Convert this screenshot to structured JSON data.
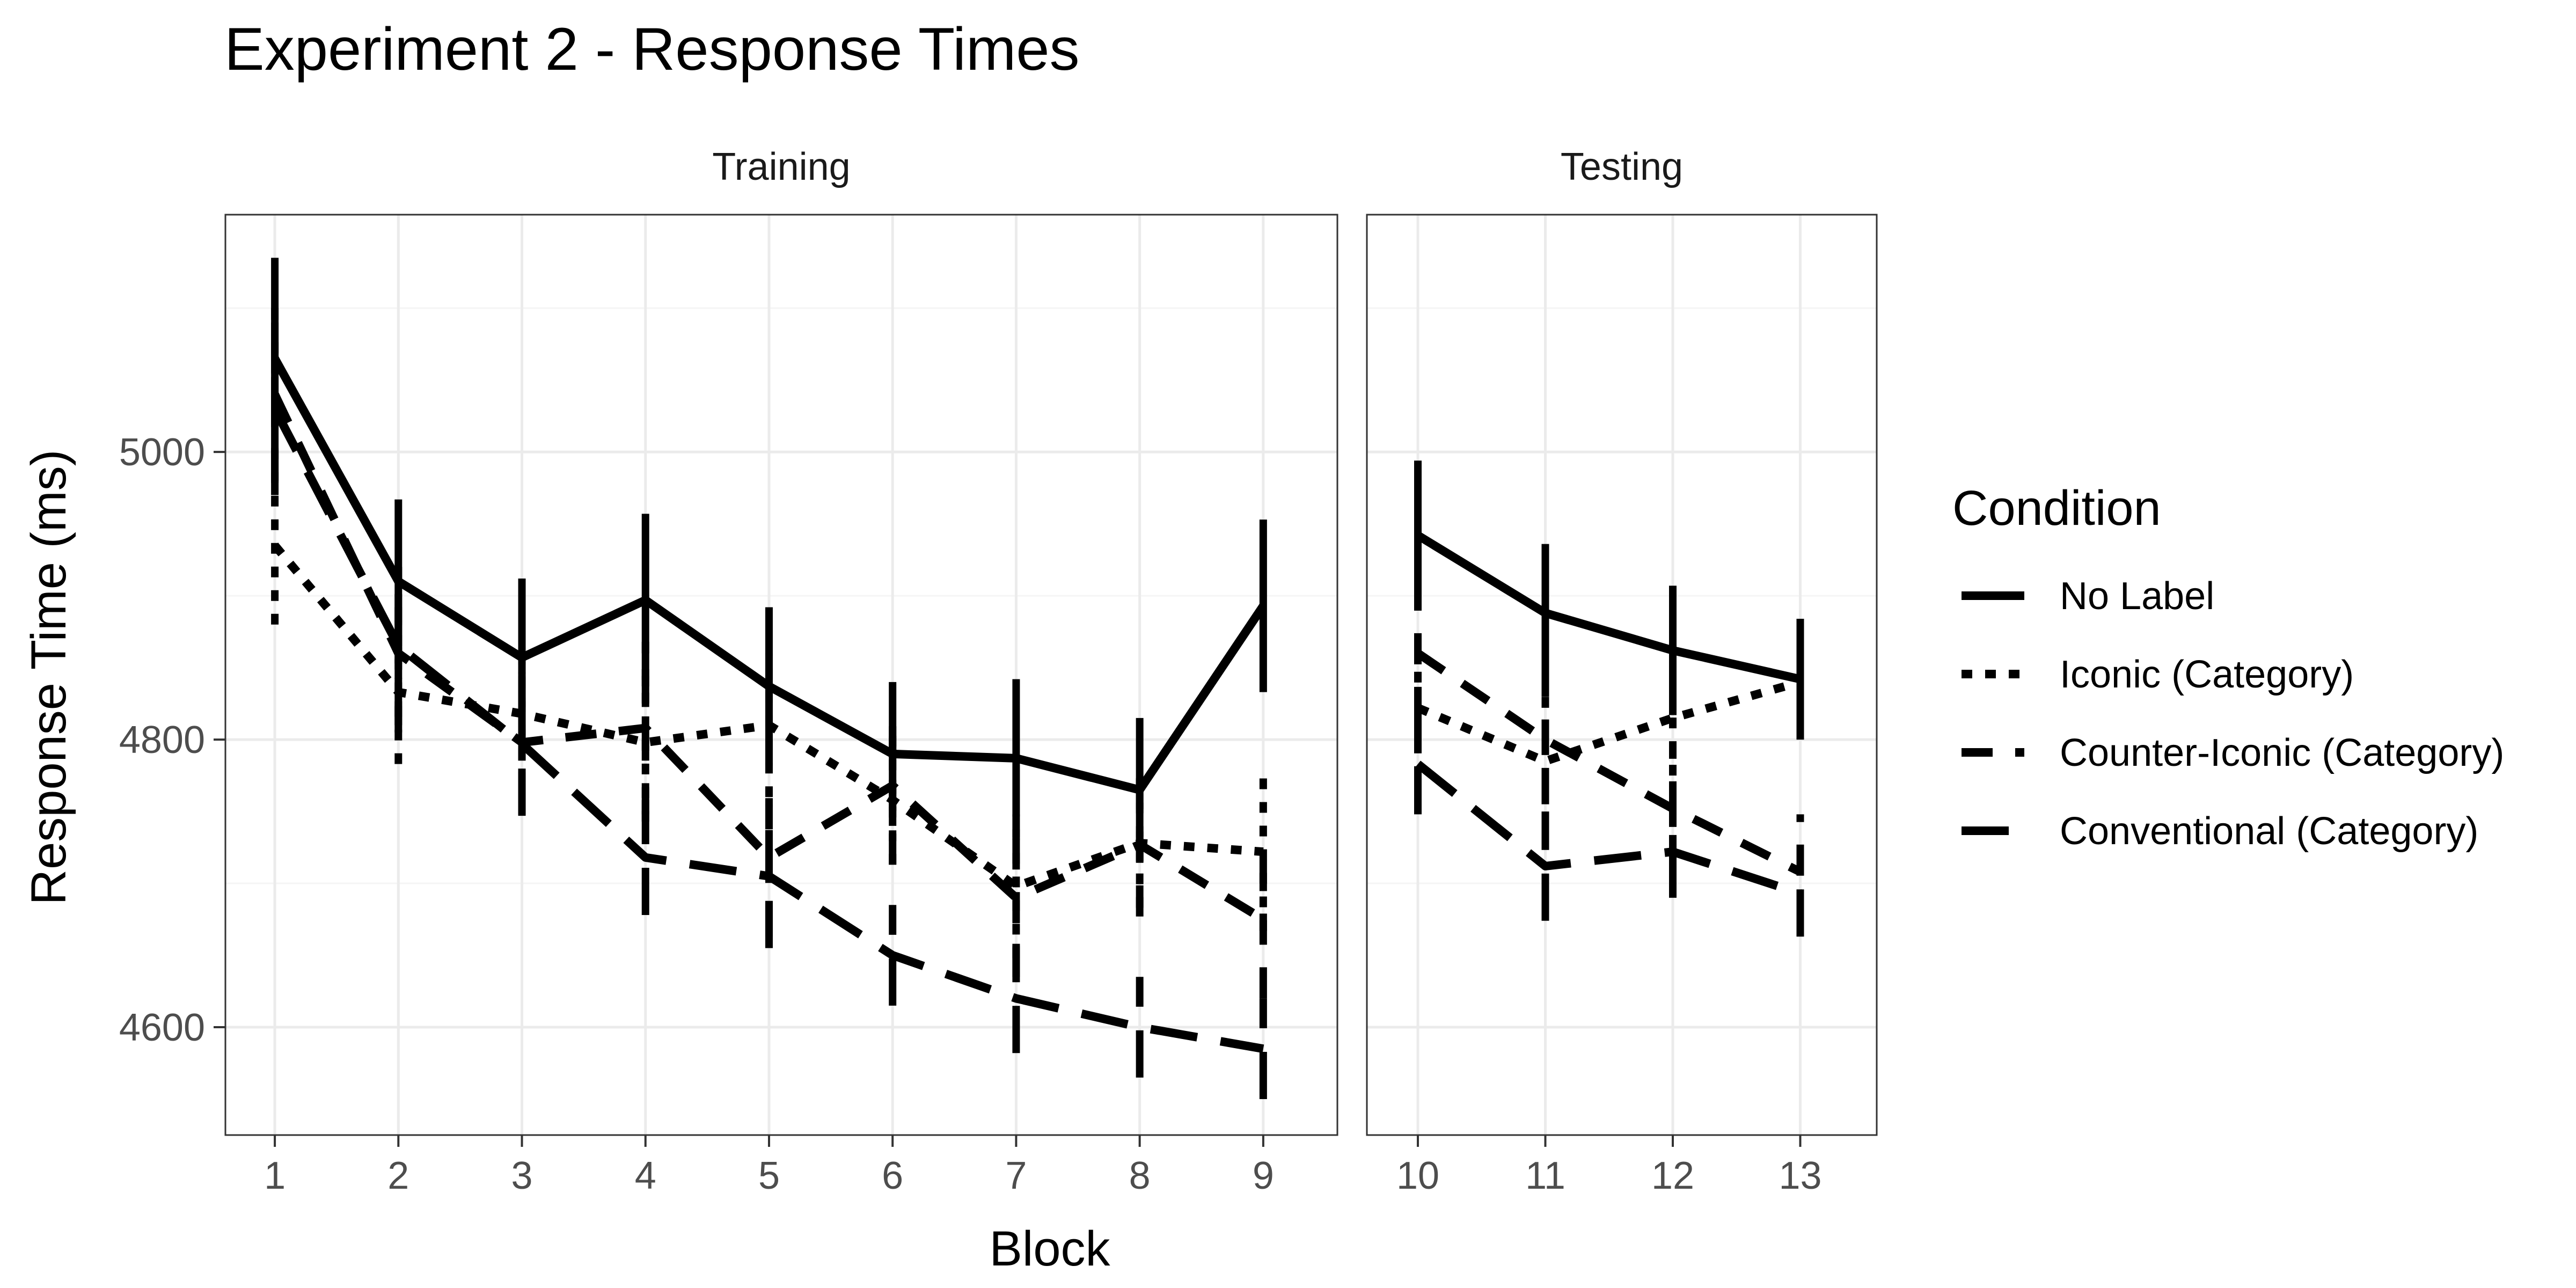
{
  "chart_data": {
    "type": "line",
    "title": "Experiment 2 - Response Times",
    "xlabel": "Block",
    "ylabel": "Response Time (ms)",
    "ylim": [
      4525,
      5165
    ],
    "yticks": [
      4600,
      4800,
      5000
    ],
    "grid": true,
    "legend": {
      "title": "Condition",
      "placement": "right"
    },
    "panels": [
      {
        "name": "Training",
        "x": [
          1,
          2,
          3,
          4,
          5,
          6,
          7,
          8,
          9
        ],
        "xlim": [
          0.6,
          9.6
        ]
      },
      {
        "name": "Testing",
        "x": [
          10,
          11,
          12,
          13
        ],
        "xlim": [
          9.6,
          13.6
        ]
      }
    ],
    "series": [
      {
        "name": "No Label",
        "dash": "solid",
        "values": [
          5065,
          4910,
          4857,
          4897,
          4837,
          4790,
          4787,
          4765,
          4893,
          4942,
          4888,
          4862,
          4842
        ],
        "error": [
          70,
          57,
          55,
          60,
          55,
          50,
          55,
          50,
          60,
          52,
          48,
          45,
          42
        ]
      },
      {
        "name": "Iconic (Category)",
        "dash": "dotted",
        "values": [
          4935,
          4833,
          4818,
          4798,
          4810,
          4758,
          4698,
          4728,
          4722,
          4822,
          4785,
          4815,
          4840
        ],
        "error": [
          55,
          50,
          48,
          55,
          50,
          45,
          50,
          45,
          55,
          48,
          45,
          40,
          40
        ]
      },
      {
        "name": "Counter-Iconic (Category)",
        "dash": "dashed",
        "values": [
          5040,
          4860,
          4798,
          4808,
          4718,
          4768,
          4690,
          4727,
          4675,
          4860,
          4800,
          4752,
          4708
        ],
        "error": [
          60,
          55,
          50,
          60,
          55,
          55,
          55,
          50,
          55,
          45,
          45,
          40,
          40
        ]
      },
      {
        "name": "Conventional (Category)",
        "dash": "longdash",
        "values": [
          5030,
          4865,
          4797,
          4718,
          4705,
          4650,
          4620,
          4600,
          4585,
          4783,
          4712,
          4722,
          4693
        ],
        "error": [
          60,
          55,
          50,
          40,
          50,
          35,
          38,
          35,
          35,
          35,
          38,
          32,
          30
        ]
      }
    ]
  }
}
